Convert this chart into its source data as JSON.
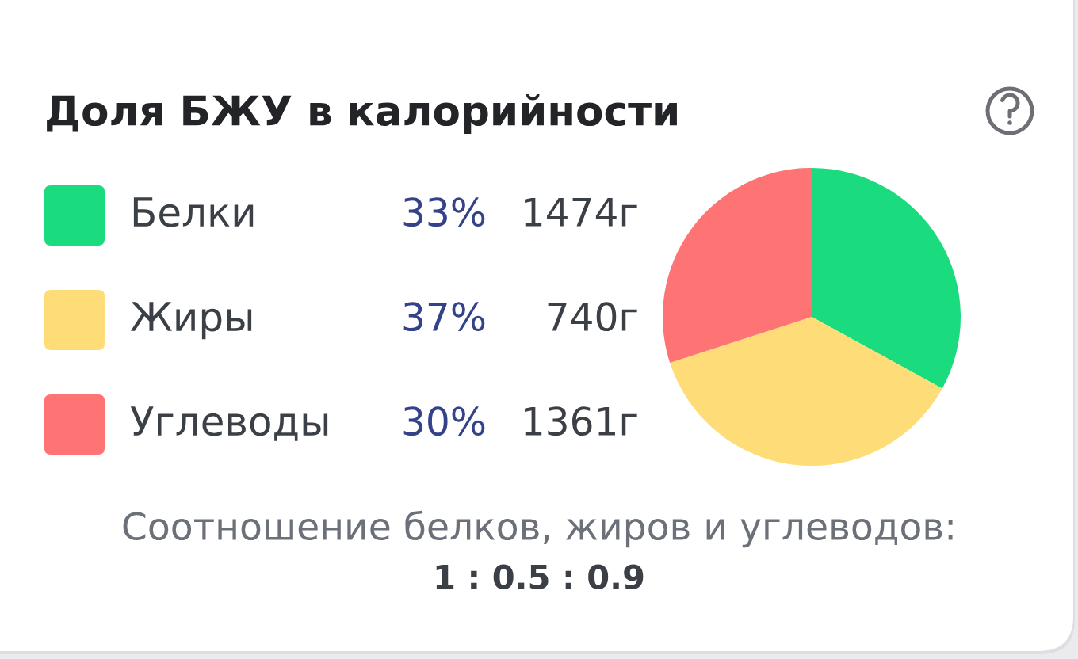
{
  "chart_data": {
    "type": "pie",
    "title": "Доля БЖУ в калорийности",
    "categories": [
      "Белки",
      "Жиры",
      "Углеводы"
    ],
    "values": [
      33,
      37,
      30
    ],
    "colors": [
      "#1adc7e",
      "#fedd78",
      "#fe7474"
    ],
    "value_labels": [
      "33%",
      "37%",
      "30%"
    ],
    "legend": "left",
    "annotations": [
      {
        "text": "1474г",
        "x": "Белки"
      },
      {
        "text": "740г",
        "x": "Жиры"
      },
      {
        "text": "1361г",
        "x": "Углеводы"
      },
      "Соотношение белков, жиров и углеводов:",
      "1 : 0.5 : 0.9"
    ]
  }
}
